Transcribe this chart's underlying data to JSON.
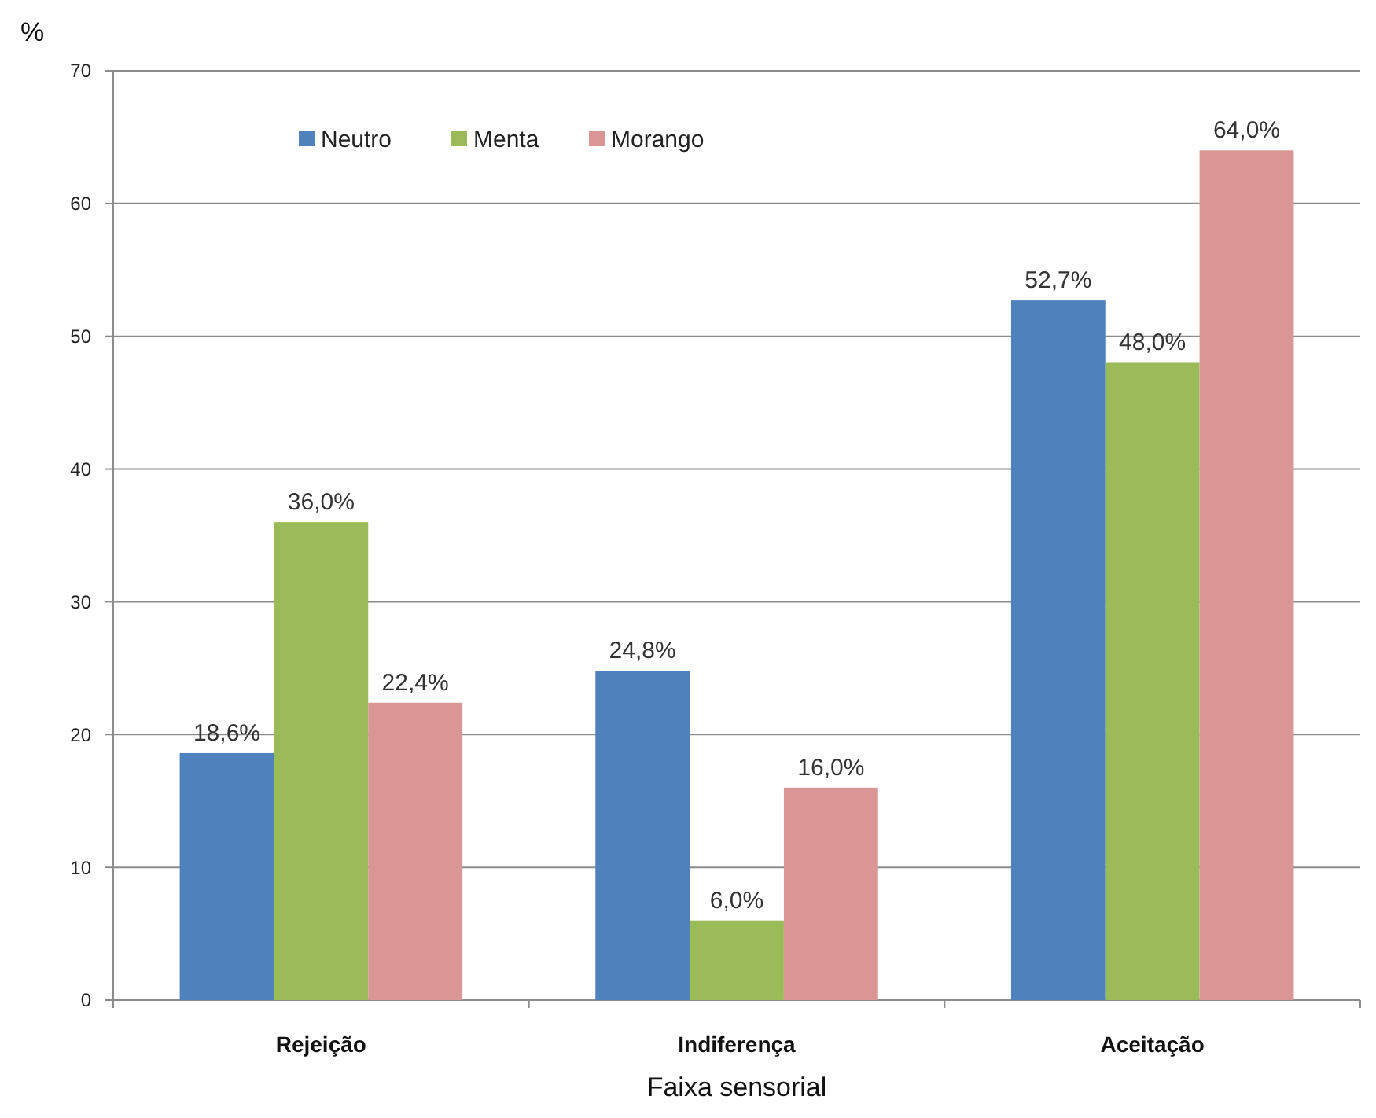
{
  "chart_data": {
    "type": "bar",
    "xlabel": "Faixa sensorial",
    "ylabel": "%",
    "categories": [
      "Rejeição",
      "Indiferença",
      "Aceitação"
    ],
    "series": [
      {
        "name": "Neutro",
        "color": "#4f81bd",
        "values": [
          18.6,
          24.8,
          52.7
        ],
        "value_labels": [
          "18,6%",
          "24,8%",
          "52,7%"
        ]
      },
      {
        "name": "Menta",
        "color": "#9bbb59",
        "values": [
          36.0,
          6.0,
          48.0
        ],
        "value_labels": [
          "36,0%",
          "6,0%",
          "48,0%"
        ]
      },
      {
        "name": "Morango",
        "color": "#d99694",
        "values": [
          22.4,
          16.0,
          64.0
        ],
        "value_labels": [
          "22,4%",
          "16,0%",
          "64,0%"
        ]
      }
    ],
    "ylim": [
      0,
      70
    ],
    "yticks": [
      0,
      10,
      20,
      30,
      40,
      50,
      60,
      70
    ],
    "grid": "y",
    "legend": "top left"
  }
}
